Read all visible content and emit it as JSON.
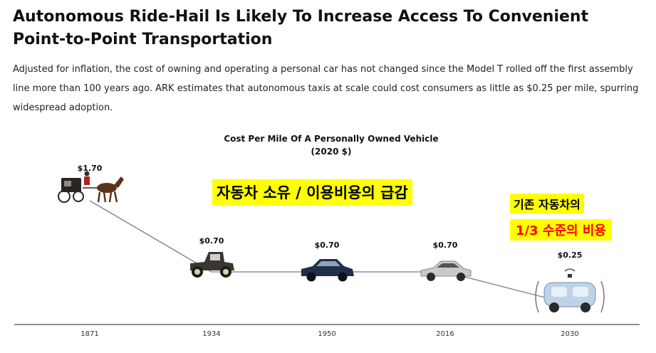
{
  "headline": "Autonomous Ride-Hail Is Likely To Increase Access To Convenient Point-to-Point Transportation",
  "description": "Adjusted for inflation, the cost of owning and operating a personal car has not changed since the Model T rolled off the first assembly line more than 100 years ago. ARK estimates that autonomous taxis at scale could cost consumers as little as $0.25 per mile, spurring widespread adoption.",
  "callouts": {
    "main": "자동차 소유 / 이용비용의 급감",
    "sub": "기존 자동차의",
    "highlight": "1/3 수준의 비용"
  },
  "chart_data": {
    "type": "line",
    "title": "Cost Per Mile Of A Personally Owned Vehicle",
    "subtitle": "(2020 $)",
    "categories": [
      "1871",
      "1934",
      "1950",
      "2016",
      "2030"
    ],
    "values": [
      1.7,
      0.7,
      0.7,
      0.7,
      0.25
    ],
    "value_labels": [
      "$1.70",
      "$0.70",
      "$0.70",
      "$0.70",
      "$0.25"
    ],
    "icons": [
      "horse-carriage-icon",
      "vintage-car-icon",
      "classic-sedan-icon",
      "modern-sedan-icon",
      "autonomous-taxi-icon"
    ],
    "line_color": "#7a7a90",
    "axis_color": "#222222",
    "grid": false
  }
}
